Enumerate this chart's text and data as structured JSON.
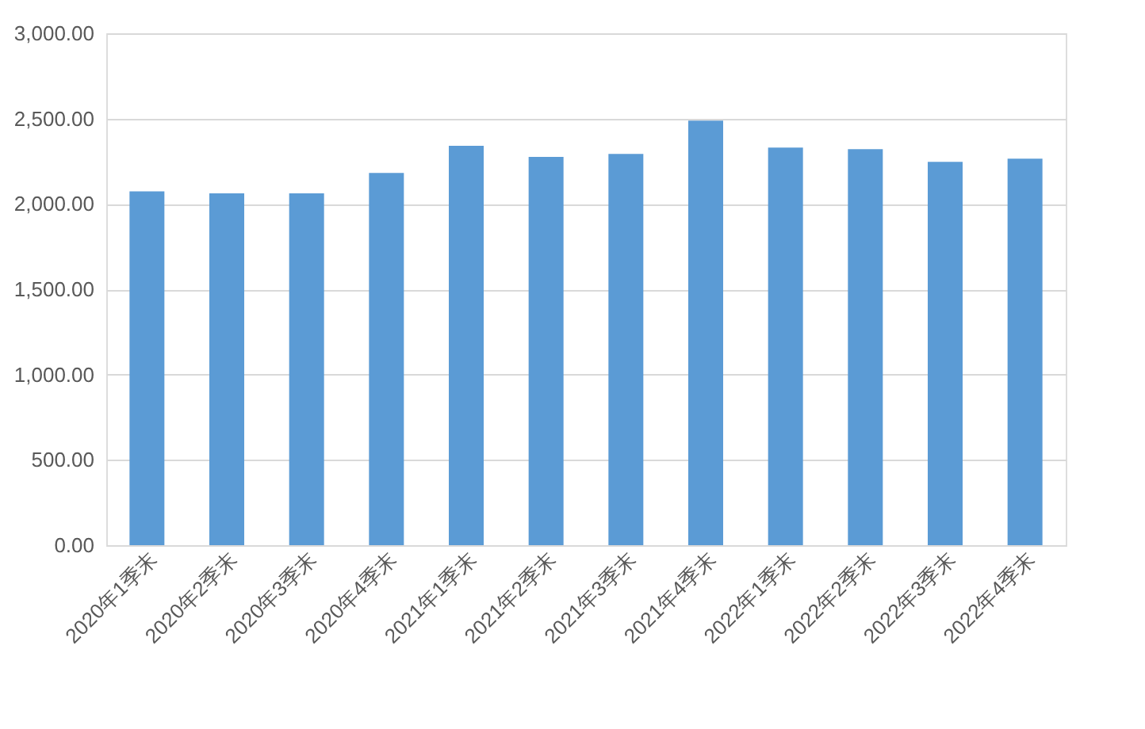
{
  "chart_data": {
    "type": "bar",
    "categories": [
      "2020年1季末",
      "2020年2季末",
      "2020年3季末",
      "2020年4季末",
      "2021年1季末",
      "2021年2季末",
      "2021年3季末",
      "2021年4季末",
      "2022年1季末",
      "2022年2季末",
      "2022年3季末",
      "2022年4季末"
    ],
    "values": [
      2074,
      2062,
      2062,
      2182,
      2340,
      2275,
      2293,
      2488,
      2330,
      2321,
      2247,
      2265
    ],
    "color": "#5b9bd5",
    "ylim": [
      0,
      3000
    ],
    "yticks": [
      {
        "value": 0,
        "label": "0.00"
      },
      {
        "value": 500,
        "label": "500.00"
      },
      {
        "value": 1000,
        "label": "1,000.00"
      },
      {
        "value": 1500,
        "label": "1,500.00"
      },
      {
        "value": 2000,
        "label": "2,000.00"
      },
      {
        "value": 2500,
        "label": "2,500.00"
      },
      {
        "value": 3000,
        "label": "3,000.00"
      }
    ],
    "grid": "y"
  }
}
